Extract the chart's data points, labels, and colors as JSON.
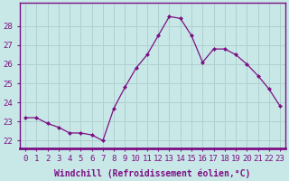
{
  "x": [
    0,
    1,
    2,
    3,
    4,
    5,
    6,
    7,
    8,
    9,
    10,
    11,
    12,
    13,
    14,
    15,
    16,
    17,
    18,
    19,
    20,
    21,
    22,
    23
  ],
  "y": [
    23.2,
    23.2,
    22.9,
    22.7,
    22.4,
    22.4,
    22.3,
    22.0,
    23.7,
    24.8,
    25.8,
    26.5,
    27.5,
    28.5,
    28.4,
    27.5,
    26.1,
    26.8,
    26.8,
    26.5,
    26.0,
    25.4,
    24.7,
    23.8
  ],
  "line_color": "#7B1082",
  "marker": "D",
  "marker_size": 2.5,
  "background_color": "#c8e8e8",
  "grid_color": "#b0d0d0",
  "xlabel": "Windchill (Refroidissement éolien,°C)",
  "xlabel_fontsize": 7,
  "ylim": [
    21.6,
    29.2
  ],
  "yticks": [
    22,
    23,
    24,
    25,
    26,
    27,
    28
  ],
  "xticks": [
    0,
    1,
    2,
    3,
    4,
    5,
    6,
    7,
    8,
    9,
    10,
    11,
    12,
    13,
    14,
    15,
    16,
    17,
    18,
    19,
    20,
    21,
    22,
    23
  ],
  "tick_fontsize": 6.5,
  "text_color": "#7B1082",
  "spine_color": "#7B1082",
  "xlim": [
    -0.5,
    23.5
  ]
}
